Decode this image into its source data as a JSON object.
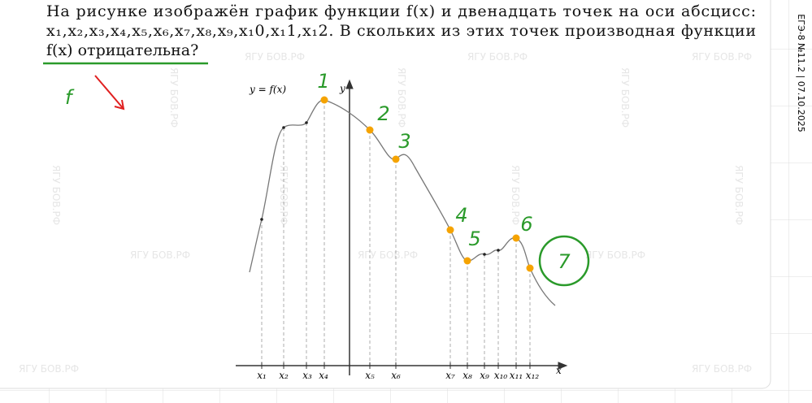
{
  "problem": {
    "lines": [
      "На рисунке изображён график функции f(x) и двенадцать точек на оси абсцисс:",
      "x₁,x₂,x₃,x₄,x₅,x₆,x₇,x₈,x₉,x₁0,x₁1,x₁2. В скольких из этих точек производная функции",
      "f(x) отрицательна?"
    ]
  },
  "side_label": "ЕГЭ-8 №11.2 | 07.10.2025",
  "watermark": "ЯГУ БОВ.РФ",
  "graph": {
    "function_label": "y = f(x)",
    "y_axis_label": "y",
    "x_axis_label": "x",
    "point_labels": [
      "x₁",
      "x₂",
      "x₃",
      "x₄",
      "x₅",
      "x₆",
      "x₇",
      "x₈",
      "x₉",
      "x₁₀",
      "x₁₁",
      "x₁₂"
    ]
  },
  "handwriting": {
    "function_note": "f",
    "marks": [
      "1",
      "2",
      "3",
      "4",
      "5",
      "6"
    ],
    "answer": "7"
  }
}
